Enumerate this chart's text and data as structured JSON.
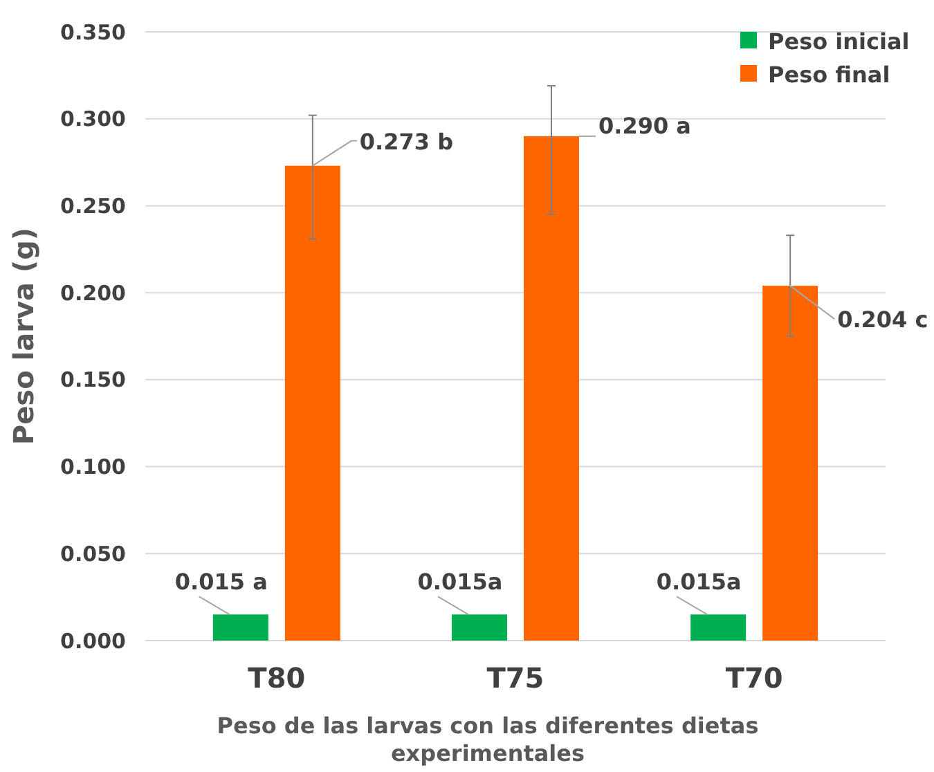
{
  "chart_data": {
    "type": "bar",
    "xlabel": "Peso de las larvas con las diferentes dietas experimentales",
    "ylabel": "Peso larva (g)",
    "categories": [
      "T80",
      "T75",
      "T70"
    ],
    "series": [
      {
        "name": "Peso inicial",
        "color": "#00b050",
        "values": [
          0.015,
          0.015,
          0.015
        ],
        "value_labels": [
          "0.015 a",
          "0.015a",
          "0.015a"
        ]
      },
      {
        "name": "Peso final",
        "color": "#ff6600",
        "values": [
          0.273,
          0.29,
          0.204
        ],
        "value_labels": [
          "0.273 b",
          "0.290 a",
          "0.204 c"
        ],
        "errors": [
          [
            0.231,
            0.302
          ],
          [
            0.245,
            0.319
          ],
          [
            0.175,
            0.233
          ]
        ]
      }
    ],
    "ylim": [
      0,
      0.35
    ],
    "yticks": [
      {
        "value": 0,
        "label": "0.000"
      },
      {
        "value": 0.05,
        "label": "0.050"
      },
      {
        "value": 0.1,
        "label": "0.100"
      },
      {
        "value": 0.15,
        "label": "0.150"
      },
      {
        "value": 0.2,
        "label": "0.200"
      },
      {
        "value": 0.25,
        "label": "0.250"
      },
      {
        "value": 0.3,
        "label": "0.300"
      },
      {
        "value": 0.35,
        "label": "0.350"
      }
    ],
    "grid": "y",
    "legend": "top right"
  }
}
